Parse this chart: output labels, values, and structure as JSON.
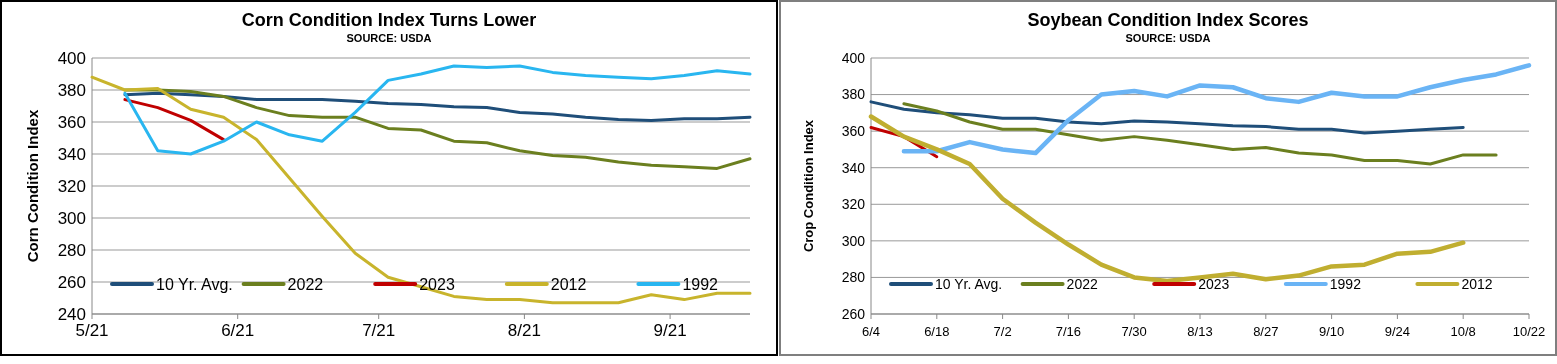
{
  "chart_data": [
    {
      "type": "line",
      "title": "Corn Condition Index Turns Lower",
      "subtitle": "SOURCE: USDA",
      "ylabel": "Corn Condition Index",
      "xlim": [
        "--05-21",
        "--10-08"
      ],
      "xticks": [
        {
          "value": "--05-21",
          "label": "5/21"
        },
        {
          "value": "--06-21",
          "label": "6/21"
        },
        {
          "value": "--07-21",
          "label": "7/21"
        },
        {
          "value": "--08-21",
          "label": "8/21"
        },
        {
          "value": "--09-21",
          "label": "9/21"
        }
      ],
      "ylim": [
        240,
        400
      ],
      "yticks": [
        240,
        260,
        280,
        300,
        320,
        340,
        360,
        380,
        400
      ],
      "grid": "y",
      "legend": "bottom",
      "line_style": "solid",
      "marker": "none",
      "x": [
        "--05-28",
        "--06-04",
        "--06-11",
        "--06-18",
        "--06-25",
        "--07-02",
        "--07-09",
        "--07-16",
        "--07-23",
        "--07-30",
        "--08-06",
        "--08-13",
        "--08-20",
        "--08-27",
        "--09-03",
        "--09-10",
        "--09-17",
        "--09-24",
        "--10-01",
        "--10-08"
      ],
      "series": [
        {
          "name": "10 Yr. Avg.",
          "color": "#1f4e79",
          "values": [
            377,
            378,
            377,
            376,
            374,
            374,
            374,
            373,
            371.5,
            371,
            369.5,
            369,
            366,
            365,
            363,
            361.5,
            361,
            362,
            362,
            363
          ]
        },
        {
          "name": "2022",
          "color": "#6b7f1f",
          "values": [
            380,
            380,
            379,
            376,
            369,
            364,
            363,
            363,
            356,
            355,
            348,
            347,
            342,
            339,
            338,
            335,
            333,
            332,
            331,
            337
          ]
        },
        {
          "name": "2023",
          "color": "#c00000",
          "values": [
            374,
            369,
            361,
            349,
            null,
            null,
            null,
            null,
            null,
            null,
            null,
            null,
            null,
            null,
            null,
            null,
            null,
            null,
            null,
            null
          ]
        },
        {
          "name": "2012",
          "color": "#c8b42c",
          "x": [
            "--05-21",
            "--05-28",
            "--06-04",
            "--06-11",
            "--06-18",
            "--06-25",
            "--07-02",
            "--07-09",
            "--07-16",
            "--07-23",
            "--07-30",
            "--08-06",
            "--08-13",
            "--08-20",
            "--08-27",
            "--09-03",
            "--09-10",
            "--09-17",
            "--09-24",
            "--10-01",
            "--10-08"
          ],
          "values": [
            388,
            380,
            381,
            368,
            363,
            349,
            325,
            301,
            278,
            263,
            257,
            251,
            249,
            249,
            247,
            247,
            247,
            252,
            249,
            253,
            253
          ]
        },
        {
          "name": "1992",
          "color": "#29b6f0",
          "values": [
            378,
            342,
            340,
            348,
            360,
            352,
            348,
            366,
            386,
            390,
            395,
            394,
            395,
            391,
            389,
            388,
            387,
            389,
            392,
            390
          ]
        }
      ]
    },
    {
      "type": "line",
      "title": "Soybean Condition Index Scores",
      "subtitle": "SOURCE: USDA",
      "ylabel": "Crop Condition Index",
      "xlim": [
        "--06-04",
        "--10-22"
      ],
      "xticks": [
        {
          "value": "--06-04",
          "label": "6/4"
        },
        {
          "value": "--06-18",
          "label": "6/18"
        },
        {
          "value": "--07-02",
          "label": "7/2"
        },
        {
          "value": "--07-16",
          "label": "7/16"
        },
        {
          "value": "--07-30",
          "label": "7/30"
        },
        {
          "value": "--08-13",
          "label": "8/13"
        },
        {
          "value": "--08-27",
          "label": "8/27"
        },
        {
          "value": "--09-10",
          "label": "9/10"
        },
        {
          "value": "--09-24",
          "label": "9/24"
        },
        {
          "value": "--10-08",
          "label": "10/8"
        },
        {
          "value": "--10-22",
          "label": "10/22"
        }
      ],
      "ylim": [
        260,
        400
      ],
      "yticks": [
        260,
        280,
        300,
        320,
        340,
        360,
        380,
        400
      ],
      "grid": "y",
      "legend": "bottom",
      "line_style": "solid",
      "marker": "none",
      "x": [
        "--06-04",
        "--06-11",
        "--06-18",
        "--06-25",
        "--07-02",
        "--07-09",
        "--07-16",
        "--07-23",
        "--07-30",
        "--08-06",
        "--08-13",
        "--08-20",
        "--08-27",
        "--09-03",
        "--09-10",
        "--09-17",
        "--09-24",
        "--10-01",
        "--10-08",
        "--10-15",
        "--10-22"
      ],
      "series": [
        {
          "name": "10 Yr. Avg.",
          "color": "#1f4e79",
          "values": [
            376,
            372,
            370,
            369,
            367,
            367,
            365,
            364,
            365.5,
            365,
            364,
            363,
            362.5,
            361,
            361,
            359,
            360,
            361,
            362,
            null,
            null
          ]
        },
        {
          "name": "2022",
          "color": "#6b7f1f",
          "values": [
            null,
            375,
            371,
            365,
            361,
            361,
            358,
            355,
            357,
            355,
            352.5,
            350,
            351,
            348,
            347,
            344,
            344,
            342,
            347,
            347,
            null
          ]
        },
        {
          "name": "2023",
          "color": "#c00000",
          "values": [
            362,
            357,
            346,
            null,
            null,
            null,
            null,
            null,
            null,
            null,
            null,
            null,
            null,
            null,
            null,
            null,
            null,
            null,
            null,
            null,
            null
          ]
        },
        {
          "name": "1992",
          "color": "#6ab4f5",
          "values": [
            null,
            349,
            349,
            354,
            350,
            348,
            366,
            380,
            382,
            379,
            385,
            384,
            378,
            376,
            381,
            379,
            379,
            384,
            388,
            391,
            396
          ]
        },
        {
          "name": "2012",
          "color": "#c0ae30",
          "values": [
            368,
            357,
            350,
            342,
            323,
            310,
            298,
            287,
            280,
            278,
            280,
            282,
            279,
            281,
            286,
            287,
            293,
            294,
            299,
            null,
            null
          ]
        }
      ]
    }
  ]
}
